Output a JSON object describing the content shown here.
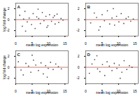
{
  "chart_data": [
    {
      "type": "scatter",
      "title": "A",
      "x_label": "mean log expression",
      "y_label": "log fold change",
      "xlim": [
        0,
        16
      ],
      "xticks": [
        0,
        5,
        10,
        15
      ],
      "ylim": [
        -3,
        3
      ],
      "yticks": [
        -2,
        0,
        2
      ],
      "color": "#555555",
      "reference_line": {
        "y": 0,
        "color": "#e8463a"
      },
      "x": [
        1.2,
        2.0,
        2.8,
        3.5,
        4.1,
        4.8,
        5.3,
        5.9,
        6.4,
        7.0,
        7.5,
        8.1,
        8.6,
        9.2,
        9.8,
        10.3,
        10.9,
        11.4,
        12.0,
        12.6,
        13.1,
        13.8,
        14.4,
        3.0,
        6.8,
        9.5,
        11.8,
        2.4
      ],
      "values": [
        0.8,
        -1.2,
        1.5,
        -0.4,
        0.3,
        -0.9,
        1.1,
        -1.6,
        0.5,
        0.2,
        -0.7,
        1.3,
        -0.2,
        0.6,
        -1.1,
        0.9,
        -0.3,
        0.4,
        -0.8,
        1.0,
        -0.5,
        0.2,
        -0.1,
        -2.1,
        1.9,
        -1.4,
        0.7,
        0.1
      ]
    },
    {
      "type": "scatter",
      "title": "B",
      "x_label": "mean log expression",
      "xlim": [
        0,
        16
      ],
      "xticks": [
        0,
        5,
        10,
        15
      ],
      "ylim": [
        -3,
        3
      ],
      "yticks": [
        -2,
        0,
        2
      ],
      "color": "#555555",
      "reference_line": {
        "y": 0,
        "color": "#e8463a"
      },
      "x": [
        1.5,
        2.6,
        3.3,
        4.4,
        5.0,
        5.7,
        6.6,
        7.3,
        8.0,
        8.8,
        9.4,
        10.1,
        10.8,
        11.6,
        12.3,
        13.0,
        13.7,
        14.5,
        4.0,
        8.4
      ],
      "values": [
        -0.6,
        1.2,
        0.4,
        -1.3,
        0.9,
        -0.2,
        1.6,
        -0.8,
        0.3,
        -1.0,
        0.6,
        -0.4,
        1.1,
        -0.7,
        0.2,
        0.5,
        -0.3,
        0.1,
        -1.9,
        2.0
      ]
    },
    {
      "type": "scatter",
      "title": "C",
      "x_label": "mean log expression",
      "y_label": "log fold change",
      "xlim": [
        0,
        16
      ],
      "xticks": [
        0,
        5,
        10,
        15
      ],
      "ylim": [
        -3,
        3
      ],
      "yticks": [
        -2,
        0,
        2
      ],
      "color": "#555555",
      "reference_line": {
        "y": 0,
        "color": "#e8463a"
      },
      "x": [
        0.8,
        1.6,
        2.3,
        3.1,
        3.9,
        4.6,
        5.4,
        6.1,
        6.9,
        7.7,
        8.4,
        9.1,
        9.9,
        10.6,
        11.4,
        12.2,
        13.0,
        13.9,
        5.0,
        9.6
      ],
      "values": [
        1.0,
        -0.5,
        -1.4,
        0.7,
        0.2,
        -0.9,
        1.3,
        0.4,
        -0.6,
        0.8,
        -1.2,
        0.3,
        -0.2,
        0.9,
        -0.4,
        0.6,
        0.1,
        -0.3,
        2.2,
        -1.8
      ]
    },
    {
      "type": "scatter",
      "title": "D",
      "x_label": "mean log expression",
      "xlim": [
        0,
        16
      ],
      "xticks": [
        0,
        5,
        10,
        15
      ],
      "ylim": [
        -3,
        3
      ],
      "yticks": [
        -2,
        0,
        2
      ],
      "color": "#555555",
      "reference_line": {
        "y": 0,
        "color": "#e8463a"
      },
      "x": [
        1.1,
        1.9,
        2.7,
        3.6,
        4.3,
        5.1,
        5.8,
        6.5,
        7.2,
        8.0,
        8.7,
        9.5,
        10.2,
        11.0,
        11.7,
        12.5,
        13.3,
        14.1,
        3.4,
        10.5
      ],
      "values": [
        -1.1,
        0.6,
        1.4,
        -0.3,
        -0.8,
        0.5,
        -1.5,
        1.0,
        0.2,
        -0.6,
        0.7,
        -0.2,
        0.4,
        -0.9,
        1.2,
        -0.4,
        0.3,
        0.0,
        2.1,
        -2.0
      ]
    }
  ]
}
